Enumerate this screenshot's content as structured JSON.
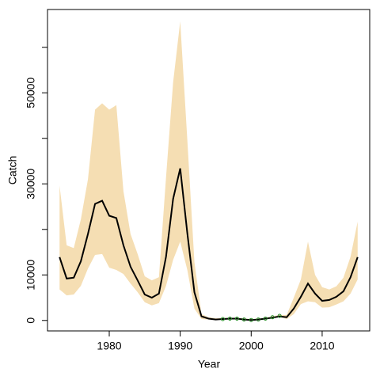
{
  "chart_data": {
    "type": "line",
    "xlabel": "Year",
    "ylabel": "Catch",
    "x": [
      1973,
      1974,
      1975,
      1976,
      1977,
      1978,
      1979,
      1980,
      1981,
      1982,
      1983,
      1984,
      1985,
      1986,
      1987,
      1988,
      1989,
      1990,
      1991,
      1992,
      1993,
      1994,
      1995,
      1996,
      1997,
      1998,
      1999,
      2000,
      2001,
      2002,
      2003,
      2004,
      2005,
      2006,
      2007,
      2008,
      2009,
      2010,
      2011,
      2012,
      2013,
      2014,
      2015
    ],
    "series": [
      {
        "name": "median",
        "color": "#000000",
        "values": [
          13900,
          9200,
          9400,
          13000,
          19000,
          25600,
          26300,
          23000,
          22500,
          16500,
          11800,
          8800,
          5700,
          5000,
          5900,
          14000,
          26700,
          33400,
          19200,
          6200,
          900,
          400,
          200,
          300,
          400,
          400,
          200,
          100,
          200,
          400,
          600,
          900,
          700,
          2600,
          5200,
          8100,
          5900,
          4300,
          4500,
          5200,
          6400,
          9500,
          13900
        ]
      },
      {
        "name": "upper",
        "color": "#f5deb3",
        "values": [
          29600,
          16500,
          15900,
          22200,
          31000,
          46300,
          47700,
          46300,
          47300,
          28400,
          19000,
          14600,
          9700,
          8800,
          9500,
          31400,
          52300,
          65700,
          39700,
          12800,
          1400,
          700,
          500,
          500,
          600,
          600,
          400,
          300,
          400,
          600,
          900,
          1200,
          1200,
          5000,
          9000,
          17300,
          10000,
          7300,
          6800,
          7500,
          9400,
          14000,
          21700
        ]
      },
      {
        "name": "lower",
        "color": "#f5deb3",
        "values": [
          6800,
          5500,
          5700,
          7600,
          11400,
          14400,
          14600,
          11600,
          11100,
          10200,
          8100,
          6200,
          4000,
          3300,
          3800,
          7600,
          13300,
          17300,
          11100,
          2600,
          300,
          200,
          100,
          200,
          300,
          300,
          100,
          0,
          100,
          300,
          500,
          800,
          300,
          1400,
          3600,
          4200,
          4000,
          2800,
          2900,
          3500,
          4200,
          5900,
          9000
        ]
      }
    ],
    "observed": {
      "color": "#228b22",
      "x": [
        1996,
        1997,
        1998,
        1999,
        2000,
        2001,
        2002,
        2003,
        2004
      ],
      "values": [
        300,
        400,
        400,
        200,
        100,
        200,
        400,
        700,
        1000
      ]
    },
    "xlim": [
      1971.3,
      2016.7
    ],
    "ylim": [
      -2300,
      68300
    ],
    "xticks": [
      1980,
      1990,
      2000,
      2010
    ],
    "yticks": [
      0,
      10000,
      30000,
      50000
    ],
    "yticks_unlabeled": [
      20000,
      40000,
      60000
    ]
  }
}
